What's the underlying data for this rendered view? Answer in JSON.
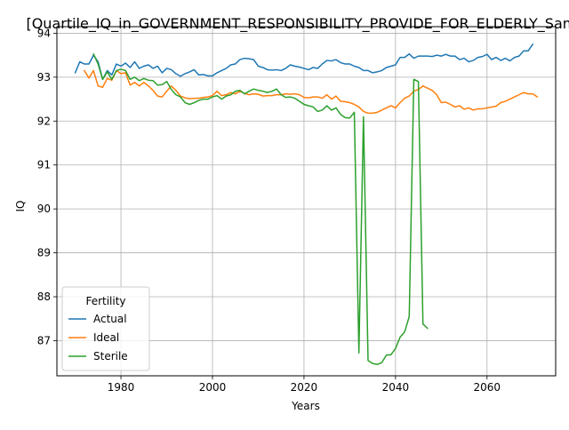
{
  "chart_data": {
    "type": "line",
    "title": "[Quartile_IQ_in_GOVERNMENT_RESPONSIBILITY_PROVIDE_FOR_ELDERLY_Samp",
    "xlabel": "Years",
    "ylabel": "IQ",
    "xlim": [
      1966,
      2075
    ],
    "ylim": [
      86.2,
      94.15
    ],
    "xticks": [
      1980,
      2000,
      2020,
      2040,
      2060
    ],
    "yticks": [
      87,
      88,
      89,
      90,
      91,
      92,
      93,
      94
    ],
    "grid": true,
    "legend": {
      "title": "Fertility",
      "placement": "lower-left"
    },
    "series": [
      {
        "name": "Actual",
        "color": "#1f77b4",
        "points": [
          [
            1970,
            93.1
          ],
          [
            1971,
            93.35
          ],
          [
            1972,
            93.3
          ],
          [
            1973,
            93.3
          ],
          [
            1974,
            93.5
          ],
          [
            1975,
            93.35
          ],
          [
            1976,
            92.95
          ],
          [
            1977,
            93.15
          ],
          [
            1978,
            93.05
          ],
          [
            1979,
            93.3
          ],
          [
            1980,
            93.25
          ],
          [
            1981,
            93.32
          ],
          [
            1982,
            93.22
          ],
          [
            1983,
            93.35
          ],
          [
            1984,
            93.2
          ],
          [
            1985,
            93.25
          ],
          [
            1986,
            93.28
          ],
          [
            1987,
            93.2
          ],
          [
            1988,
            93.25
          ],
          [
            1989,
            93.1
          ],
          [
            1990,
            93.2
          ],
          [
            1991,
            93.17
          ],
          [
            1992,
            93.08
          ],
          [
            1993,
            93.02
          ],
          [
            1994,
            93.08
          ],
          [
            1995,
            93.12
          ],
          [
            1996,
            93.17
          ],
          [
            1997,
            93.05
          ],
          [
            1998,
            93.06
          ],
          [
            1999,
            93.03
          ],
          [
            2000,
            93.03
          ],
          [
            2001,
            93.1
          ],
          [
            2002,
            93.15
          ],
          [
            2003,
            93.2
          ],
          [
            2004,
            93.28
          ],
          [
            2005,
            93.3
          ],
          [
            2006,
            93.4
          ],
          [
            2007,
            93.43
          ],
          [
            2008,
            93.42
          ],
          [
            2009,
            93.4
          ],
          [
            2010,
            93.25
          ],
          [
            2011,
            93.22
          ],
          [
            2012,
            93.17
          ],
          [
            2013,
            93.16
          ],
          [
            2014,
            93.17
          ],
          [
            2015,
            93.15
          ],
          [
            2016,
            93.2
          ],
          [
            2017,
            93.28
          ],
          [
            2018,
            93.25
          ],
          [
            2019,
            93.23
          ],
          [
            2020,
            93.2
          ],
          [
            2021,
            93.17
          ],
          [
            2022,
            93.22
          ],
          [
            2023,
            93.2
          ],
          [
            2024,
            93.3
          ],
          [
            2025,
            93.38
          ],
          [
            2026,
            93.37
          ],
          [
            2027,
            93.4
          ],
          [
            2028,
            93.33
          ],
          [
            2029,
            93.3
          ],
          [
            2030,
            93.3
          ],
          [
            2031,
            93.25
          ],
          [
            2032,
            93.22
          ],
          [
            2033,
            93.15
          ],
          [
            2034,
            93.15
          ],
          [
            2035,
            93.1
          ],
          [
            2036,
            93.12
          ],
          [
            2037,
            93.15
          ],
          [
            2038,
            93.22
          ],
          [
            2039,
            93.25
          ],
          [
            2040,
            93.28
          ],
          [
            2041,
            93.45
          ],
          [
            2042,
            93.45
          ],
          [
            2043,
            93.53
          ],
          [
            2044,
            93.43
          ],
          [
            2045,
            93.48
          ],
          [
            2046,
            93.48
          ],
          [
            2047,
            93.48
          ],
          [
            2048,
            93.47
          ],
          [
            2049,
            93.5
          ],
          [
            2050,
            93.48
          ],
          [
            2051,
            93.52
          ],
          [
            2052,
            93.48
          ],
          [
            2053,
            93.48
          ],
          [
            2054,
            93.4
          ],
          [
            2055,
            93.43
          ],
          [
            2056,
            93.35
          ],
          [
            2057,
            93.38
          ],
          [
            2058,
            93.45
          ],
          [
            2059,
            93.47
          ],
          [
            2060,
            93.52
          ],
          [
            2061,
            93.4
          ],
          [
            2062,
            93.45
          ],
          [
            2063,
            93.38
          ],
          [
            2064,
            93.43
          ],
          [
            2065,
            93.37
          ],
          [
            2066,
            93.45
          ],
          [
            2067,
            93.48
          ],
          [
            2068,
            93.6
          ],
          [
            2069,
            93.6
          ],
          [
            2070,
            93.75
          ]
        ]
      },
      {
        "name": "Ideal",
        "color": "#ff7f0e",
        "points": [
          [
            1972,
            93.15
          ],
          [
            1973,
            92.98
          ],
          [
            1974,
            93.15
          ],
          [
            1975,
            92.8
          ],
          [
            1976,
            92.77
          ],
          [
            1977,
            92.97
          ],
          [
            1978,
            92.93
          ],
          [
            1979,
            93.15
          ],
          [
            1980,
            93.08
          ],
          [
            1981,
            93.1
          ],
          [
            1982,
            92.82
          ],
          [
            1983,
            92.88
          ],
          [
            1984,
            92.8
          ],
          [
            1985,
            92.88
          ],
          [
            1986,
            92.8
          ],
          [
            1987,
            92.7
          ],
          [
            1988,
            92.57
          ],
          [
            1989,
            92.55
          ],
          [
            1990,
            92.68
          ],
          [
            1991,
            92.8
          ],
          [
            1992,
            92.7
          ],
          [
            1993,
            92.57
          ],
          [
            1994,
            92.53
          ],
          [
            1995,
            92.51
          ],
          [
            1996,
            92.52
          ],
          [
            1997,
            92.52
          ],
          [
            1998,
            92.54
          ],
          [
            1999,
            92.55
          ],
          [
            2000,
            92.58
          ],
          [
            2001,
            92.68
          ],
          [
            2002,
            92.58
          ],
          [
            2003,
            92.6
          ],
          [
            2004,
            92.65
          ],
          [
            2005,
            92.62
          ],
          [
            2006,
            92.68
          ],
          [
            2007,
            92.63
          ],
          [
            2008,
            92.6
          ],
          [
            2009,
            92.62
          ],
          [
            2010,
            92.61
          ],
          [
            2011,
            92.57
          ],
          [
            2012,
            92.58
          ],
          [
            2013,
            92.58
          ],
          [
            2014,
            92.6
          ],
          [
            2015,
            92.6
          ],
          [
            2016,
            92.62
          ],
          [
            2017,
            92.61
          ],
          [
            2018,
            92.62
          ],
          [
            2019,
            92.6
          ],
          [
            2020,
            92.54
          ],
          [
            2021,
            92.53
          ],
          [
            2022,
            92.55
          ],
          [
            2023,
            92.55
          ],
          [
            2024,
            92.52
          ],
          [
            2025,
            92.6
          ],
          [
            2026,
            92.5
          ],
          [
            2027,
            92.57
          ],
          [
            2028,
            92.45
          ],
          [
            2029,
            92.44
          ],
          [
            2030,
            92.42
          ],
          [
            2031,
            92.38
          ],
          [
            2032,
            92.32
          ],
          [
            2033,
            92.22
          ],
          [
            2034,
            92.18
          ],
          [
            2035,
            92.18
          ],
          [
            2036,
            92.2
          ],
          [
            2037,
            92.25
          ],
          [
            2038,
            92.3
          ],
          [
            2039,
            92.35
          ],
          [
            2040,
            92.3
          ],
          [
            2041,
            92.42
          ],
          [
            2042,
            92.52
          ],
          [
            2043,
            92.57
          ],
          [
            2044,
            92.68
          ],
          [
            2045,
            92.72
          ],
          [
            2046,
            92.8
          ],
          [
            2047,
            92.75
          ],
          [
            2048,
            92.7
          ],
          [
            2049,
            92.6
          ],
          [
            2050,
            92.42
          ],
          [
            2051,
            92.43
          ],
          [
            2052,
            92.38
          ],
          [
            2053,
            92.32
          ],
          [
            2054,
            92.35
          ],
          [
            2055,
            92.27
          ],
          [
            2056,
            92.3
          ],
          [
            2057,
            92.25
          ],
          [
            2058,
            92.28
          ],
          [
            2059,
            92.28
          ],
          [
            2060,
            92.3
          ],
          [
            2061,
            92.32
          ],
          [
            2062,
            92.34
          ],
          [
            2063,
            92.42
          ],
          [
            2064,
            92.45
          ],
          [
            2065,
            92.5
          ],
          [
            2066,
            92.55
          ],
          [
            2067,
            92.6
          ],
          [
            2068,
            92.65
          ],
          [
            2069,
            92.62
          ],
          [
            2070,
            92.62
          ],
          [
            2071,
            92.55
          ]
        ]
      },
      {
        "name": "Sterile",
        "color": "#2ca02c",
        "points": [
          [
            1974,
            93.53
          ],
          [
            1975,
            93.3
          ],
          [
            1976,
            92.95
          ],
          [
            1977,
            93.12
          ],
          [
            1978,
            92.95
          ],
          [
            1979,
            93.15
          ],
          [
            1980,
            93.18
          ],
          [
            1981,
            93.15
          ],
          [
            1982,
            92.95
          ],
          [
            1983,
            93.0
          ],
          [
            1984,
            92.92
          ],
          [
            1985,
            92.97
          ],
          [
            1986,
            92.93
          ],
          [
            1987,
            92.92
          ],
          [
            1988,
            92.82
          ],
          [
            1989,
            92.83
          ],
          [
            1990,
            92.9
          ],
          [
            1991,
            92.72
          ],
          [
            1992,
            92.6
          ],
          [
            1993,
            92.55
          ],
          [
            1994,
            92.42
          ],
          [
            1995,
            92.38
          ],
          [
            1996,
            92.42
          ],
          [
            1997,
            92.47
          ],
          [
            1998,
            92.5
          ],
          [
            1999,
            92.5
          ],
          [
            2000,
            92.55
          ],
          [
            2001,
            92.58
          ],
          [
            2002,
            92.5
          ],
          [
            2003,
            92.57
          ],
          [
            2004,
            92.6
          ],
          [
            2005,
            92.68
          ],
          [
            2006,
            92.7
          ],
          [
            2007,
            92.62
          ],
          [
            2008,
            92.68
          ],
          [
            2009,
            92.73
          ],
          [
            2010,
            92.7
          ],
          [
            2011,
            92.68
          ],
          [
            2012,
            92.65
          ],
          [
            2013,
            92.68
          ],
          [
            2014,
            92.73
          ],
          [
            2015,
            92.6
          ],
          [
            2016,
            92.54
          ],
          [
            2017,
            92.55
          ],
          [
            2018,
            92.52
          ],
          [
            2019,
            92.45
          ],
          [
            2020,
            92.38
          ],
          [
            2021,
            92.35
          ],
          [
            2022,
            92.32
          ],
          [
            2023,
            92.22
          ],
          [
            2024,
            92.25
          ],
          [
            2025,
            92.35
          ],
          [
            2026,
            92.25
          ],
          [
            2027,
            92.3
          ],
          [
            2028,
            92.15
          ],
          [
            2029,
            92.08
          ],
          [
            2030,
            92.07
          ],
          [
            2031,
            92.2
          ],
          [
            2032,
            86.72
          ],
          [
            2033,
            92.1
          ],
          [
            2034,
            86.55
          ],
          [
            2035,
            86.48
          ],
          [
            2036,
            86.46
          ],
          [
            2037,
            86.5
          ],
          [
            2038,
            86.67
          ],
          [
            2039,
            86.68
          ],
          [
            2040,
            86.82
          ],
          [
            2041,
            87.08
          ],
          [
            2042,
            87.2
          ],
          [
            2043,
            87.55
          ],
          [
            2044,
            92.95
          ],
          [
            2045,
            92.9
          ],
          [
            2046,
            87.38
          ],
          [
            2047,
            87.28
          ]
        ]
      }
    ]
  }
}
